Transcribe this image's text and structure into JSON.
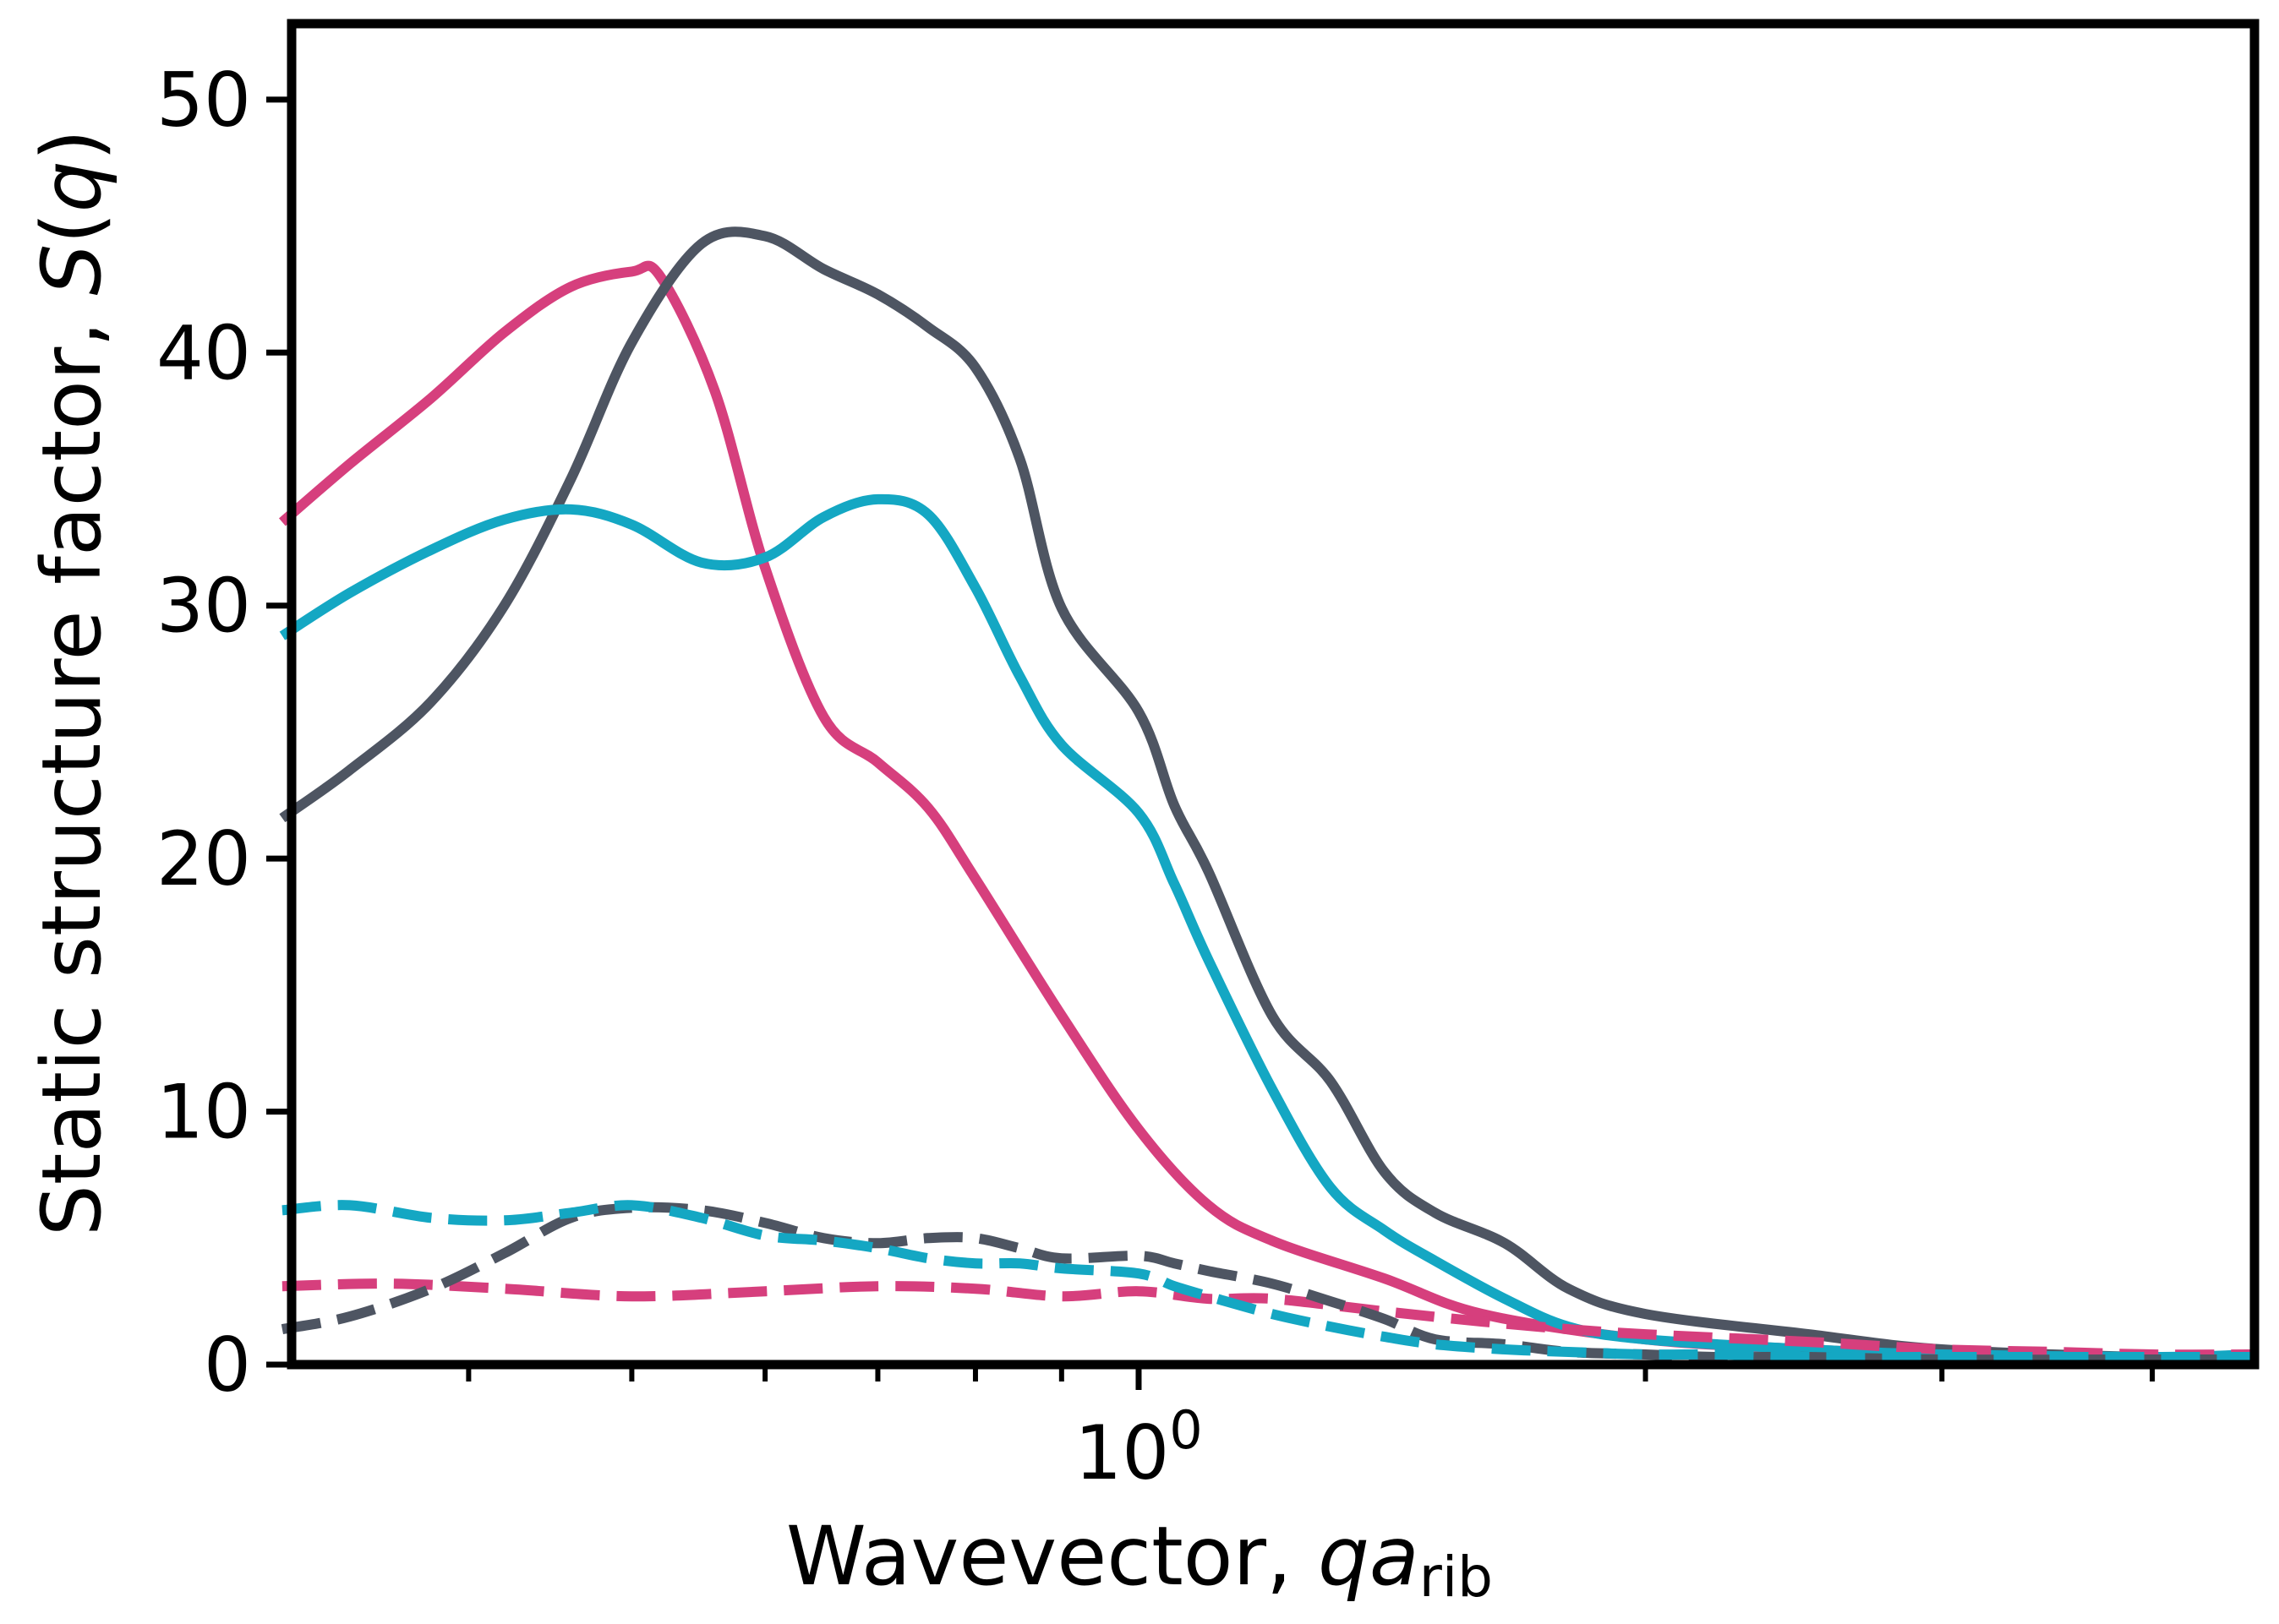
{
  "chart_data": {
    "type": "line",
    "xlabel": {
      "prefix": "Wavevector, ",
      "var": "qa",
      "sub": "rib"
    },
    "ylabel": {
      "prefix": "Static structure factor, ",
      "var": "S",
      "open": "(",
      "arg": "q",
      "close": ")"
    },
    "xscale": "log",
    "xlim": [
      0.314,
      4.6
    ],
    "ylim": [
      0,
      53
    ],
    "xticks_major": [
      {
        "value": 1,
        "label_base": "10",
        "label_exp": "0"
      }
    ],
    "xticks_minor": [
      0.4,
      0.5,
      0.6,
      0.7,
      0.8,
      0.9,
      2,
      3,
      4
    ],
    "yticks": [
      {
        "value": 0,
        "label": "0"
      },
      {
        "value": 10,
        "label": "10"
      },
      {
        "value": 20,
        "label": "20"
      },
      {
        "value": 30,
        "label": "30"
      },
      {
        "value": 40,
        "label": "40"
      },
      {
        "value": 50,
        "label": "50"
      }
    ],
    "grid": false,
    "legend": false,
    "series": [
      {
        "color": "#d63f7d",
        "style": "solid",
        "x": [
          0.31,
          0.34,
          0.38,
          0.42,
          0.46,
          0.5,
          0.52,
          0.56,
          0.6,
          0.65,
          0.7,
          0.75,
          0.8,
          0.9,
          1.0,
          1.1,
          1.2,
          1.4,
          1.6,
          2.0,
          2.5,
          3.0,
          4.0,
          4.6
        ],
        "y": [
          33.3,
          35.6,
          38.2,
          40.8,
          42.6,
          43.2,
          43.0,
          38.5,
          31.5,
          25.6,
          23.8,
          22.0,
          19.2,
          13.8,
          9.3,
          6.3,
          4.9,
          3.4,
          2.0,
          1.0,
          0.6,
          0.4,
          0.2,
          0.2
        ]
      },
      {
        "color": "#4e5562",
        "style": "solid",
        "x": [
          0.31,
          0.34,
          0.38,
          0.42,
          0.46,
          0.5,
          0.55,
          0.6,
          0.65,
          0.7,
          0.75,
          0.8,
          0.85,
          0.9,
          1.0,
          1.05,
          1.1,
          1.2,
          1.3,
          1.4,
          1.5,
          1.65,
          1.8,
          2.0,
          2.5,
          3.0,
          4.0,
          4.6
        ],
        "y": [
          21.6,
          23.5,
          26.2,
          30.0,
          35.0,
          40.4,
          44.3,
          44.6,
          43.3,
          42.3,
          41.0,
          39.4,
          35.8,
          29.9,
          25.8,
          22.1,
          19.5,
          13.8,
          11.2,
          7.6,
          6.0,
          4.8,
          3.0,
          2.0,
          1.2,
          0.6,
          0.3,
          0.4
        ]
      },
      {
        "color": "#14a7c3",
        "style": "solid",
        "x": [
          0.31,
          0.34,
          0.38,
          0.42,
          0.46,
          0.5,
          0.55,
          0.6,
          0.65,
          0.7,
          0.75,
          0.8,
          0.85,
          0.9,
          1.0,
          1.05,
          1.1,
          1.2,
          1.3,
          1.4,
          1.5,
          1.65,
          1.8,
          2.0,
          2.5,
          3.0,
          4.0,
          4.6
        ],
        "y": [
          28.8,
          30.5,
          32.2,
          33.4,
          33.8,
          33.2,
          31.7,
          31.9,
          33.5,
          34.2,
          33.6,
          30.7,
          27.2,
          24.5,
          21.8,
          19.0,
          16.0,
          10.9,
          7.0,
          5.3,
          4.1,
          2.6,
          1.5,
          1.0,
          0.6,
          0.4,
          0.3,
          0.4
        ]
      },
      {
        "color": "#d63f7d",
        "style": "dashed",
        "x": [
          0.31,
          0.36,
          0.42,
          0.5,
          0.6,
          0.7,
          0.8,
          0.9,
          1.0,
          1.1,
          1.2,
          1.4,
          1.6,
          1.8,
          2.0,
          2.5,
          3.0,
          3.5,
          4.0,
          4.6
        ],
        "y": [
          3.1,
          3.2,
          3.0,
          2.7,
          2.9,
          3.1,
          3.0,
          2.7,
          2.9,
          2.6,
          2.6,
          2.1,
          1.7,
          1.4,
          1.2,
          0.9,
          0.6,
          0.5,
          0.4,
          0.4
        ]
      },
      {
        "color": "#4e5562",
        "style": "dashed",
        "x": [
          0.31,
          0.34,
          0.38,
          0.42,
          0.46,
          0.5,
          0.55,
          0.6,
          0.65,
          0.7,
          0.75,
          0.8,
          0.85,
          0.9,
          1.0,
          1.05,
          1.1,
          1.2,
          1.3,
          1.4,
          1.5,
          1.65,
          1.8,
          2.0,
          2.2,
          2.5,
          3.0,
          4.0,
          4.6
        ],
        "y": [
          1.4,
          1.9,
          3.0,
          4.4,
          5.8,
          6.2,
          6.1,
          5.6,
          5.0,
          4.8,
          5.0,
          5.0,
          4.6,
          4.2,
          4.3,
          4.0,
          3.7,
          3.2,
          2.5,
          1.8,
          1.0,
          0.8,
          0.5,
          0.4,
          0.3,
          0.3,
          0.2,
          0.2,
          0.2
        ]
      },
      {
        "color": "#14a7c3",
        "style": "dashed",
        "x": [
          0.31,
          0.34,
          0.38,
          0.42,
          0.46,
          0.5,
          0.55,
          0.6,
          0.65,
          0.7,
          0.75,
          0.8,
          0.85,
          0.9,
          1.0,
          1.05,
          1.1,
          1.2,
          1.3,
          1.4,
          1.5,
          1.65,
          1.8,
          2.0,
          2.2,
          2.5,
          3.0,
          4.0,
          4.6
        ],
        "y": [
          6.1,
          6.3,
          5.8,
          5.7,
          6.0,
          6.3,
          5.8,
          5.1,
          4.9,
          4.6,
          4.2,
          4.0,
          4.0,
          3.8,
          3.6,
          3.1,
          2.7,
          2.0,
          1.5,
          1.1,
          0.8,
          0.6,
          0.5,
          0.4,
          0.4,
          0.3,
          0.3,
          0.3,
          0.3
        ]
      }
    ]
  }
}
